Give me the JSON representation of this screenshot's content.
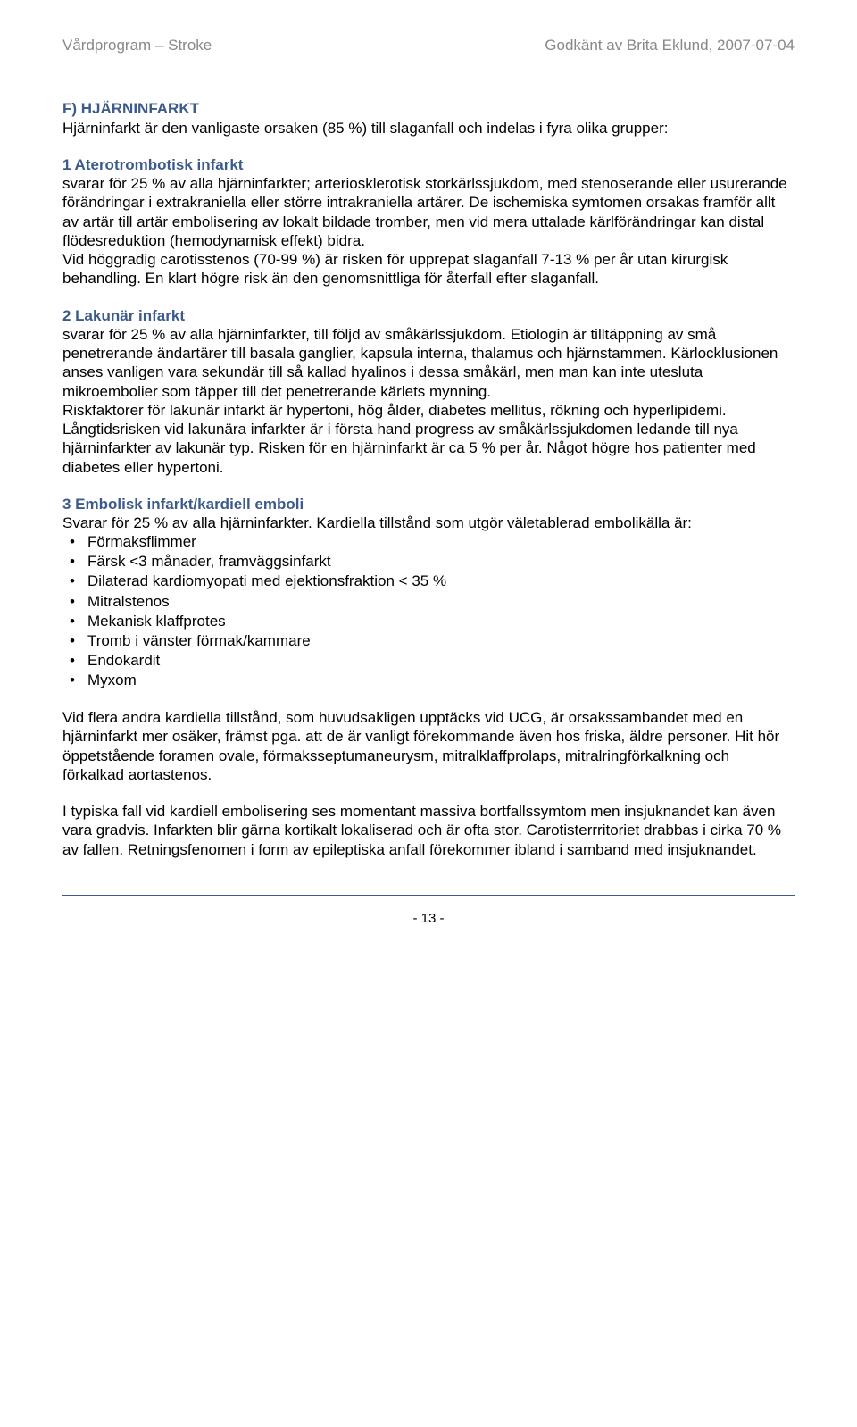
{
  "header": {
    "left": "Vårdprogram – Stroke",
    "right": "Godkänt av Brita Eklund, 2007-07-04"
  },
  "sectionF": {
    "title": "F) HJÄRNINFARKT",
    "intro": "Hjärninfarkt är den vanligaste orsaken (85 %) till slaganfall och indelas i fyra olika grupper:"
  },
  "sub1": {
    "title": "1 Aterotrombotisk infarkt",
    "body": "svarar för 25 % av alla hjärninfarkter; arteriosklerotisk storkärlssjukdom, med stenoserande eller usurerande förändringar i extrakraniella eller större intrakraniella artärer. De ischemiska symtomen orsakas framför allt av artär till artär embolisering av lokalt bildade tromber, men vid mera uttalade kärlförändringar kan distal flödesreduktion (hemodynamisk effekt) bidra.\nVid höggradig carotisstenos (70-99 %) är risken för upprepat slaganfall 7-13 % per år utan kirurgisk behandling. En klart högre risk än den genomsnittliga för återfall efter slaganfall."
  },
  "sub2": {
    "title": "2 Lakunär infarkt",
    "body": "svarar för 25 % av alla hjärninfarkter, till följd av småkärlssjukdom. Etiologin är tilltäppning av små penetrerande ändartärer till basala ganglier, kapsula interna, thalamus och hjärnstammen. Kärlocklusionen anses vanligen vara sekundär till så kallad hyalinos i dessa småkärl, men man kan inte utesluta mikroembolier som täpper till det penetrerande kärlets mynning.\nRiskfaktorer för lakunär infarkt är hypertoni, hög ålder, diabetes mellitus, rökning och hyperlipidemi. Långtidsrisken vid lakunära infarkter är i första hand progress av småkärlssjukdomen ledande till nya hjärninfarkter av lakunär typ. Risken för en hjärninfarkt är ca 5 % per år. Något högre hos patienter med diabetes eller hypertoni."
  },
  "sub3": {
    "title": "3 Embolisk infarkt/kardiell emboli",
    "intro": "Svarar för 25 % av alla hjärninfarkter. Kardiella tillstånd som utgör väletablerad embolikälla är:",
    "bullets": [
      "Förmaksflimmer",
      "Färsk <3 månader, framväggsinfarkt",
      "Dilaterad kardiomyopati med ejektionsfraktion < 35 %",
      "Mitralstenos",
      "Mekanisk klaffprotes",
      "Tromb i vänster förmak/kammare",
      "Endokardit",
      "Myxom"
    ],
    "para2": "Vid flera andra kardiella tillstånd, som huvudsakligen upptäcks vid UCG, är orsakssambandet med en hjärninfarkt mer osäker, främst pga. att de är vanligt förekommande även hos friska, äldre personer. Hit hör öppetstående foramen ovale, förmaksseptumaneurysm, mitralklaffprolaps, mitralringförkalkning och förkalkad aortastenos.",
    "para3": "I typiska fall vid kardiell embolisering ses momentant massiva bortfallssymtom men insjuknandet kan även vara gradvis. Infarkten blir gärna kortikalt lokaliserad och är ofta stor. Carotisterrritoriet drabbas i cirka 70 % av fallen. Retningsfenomen i form av epileptiska anfall förekommer ibland i samband med insjuknandet."
  },
  "footer": {
    "pageNum": "- 13 -"
  }
}
